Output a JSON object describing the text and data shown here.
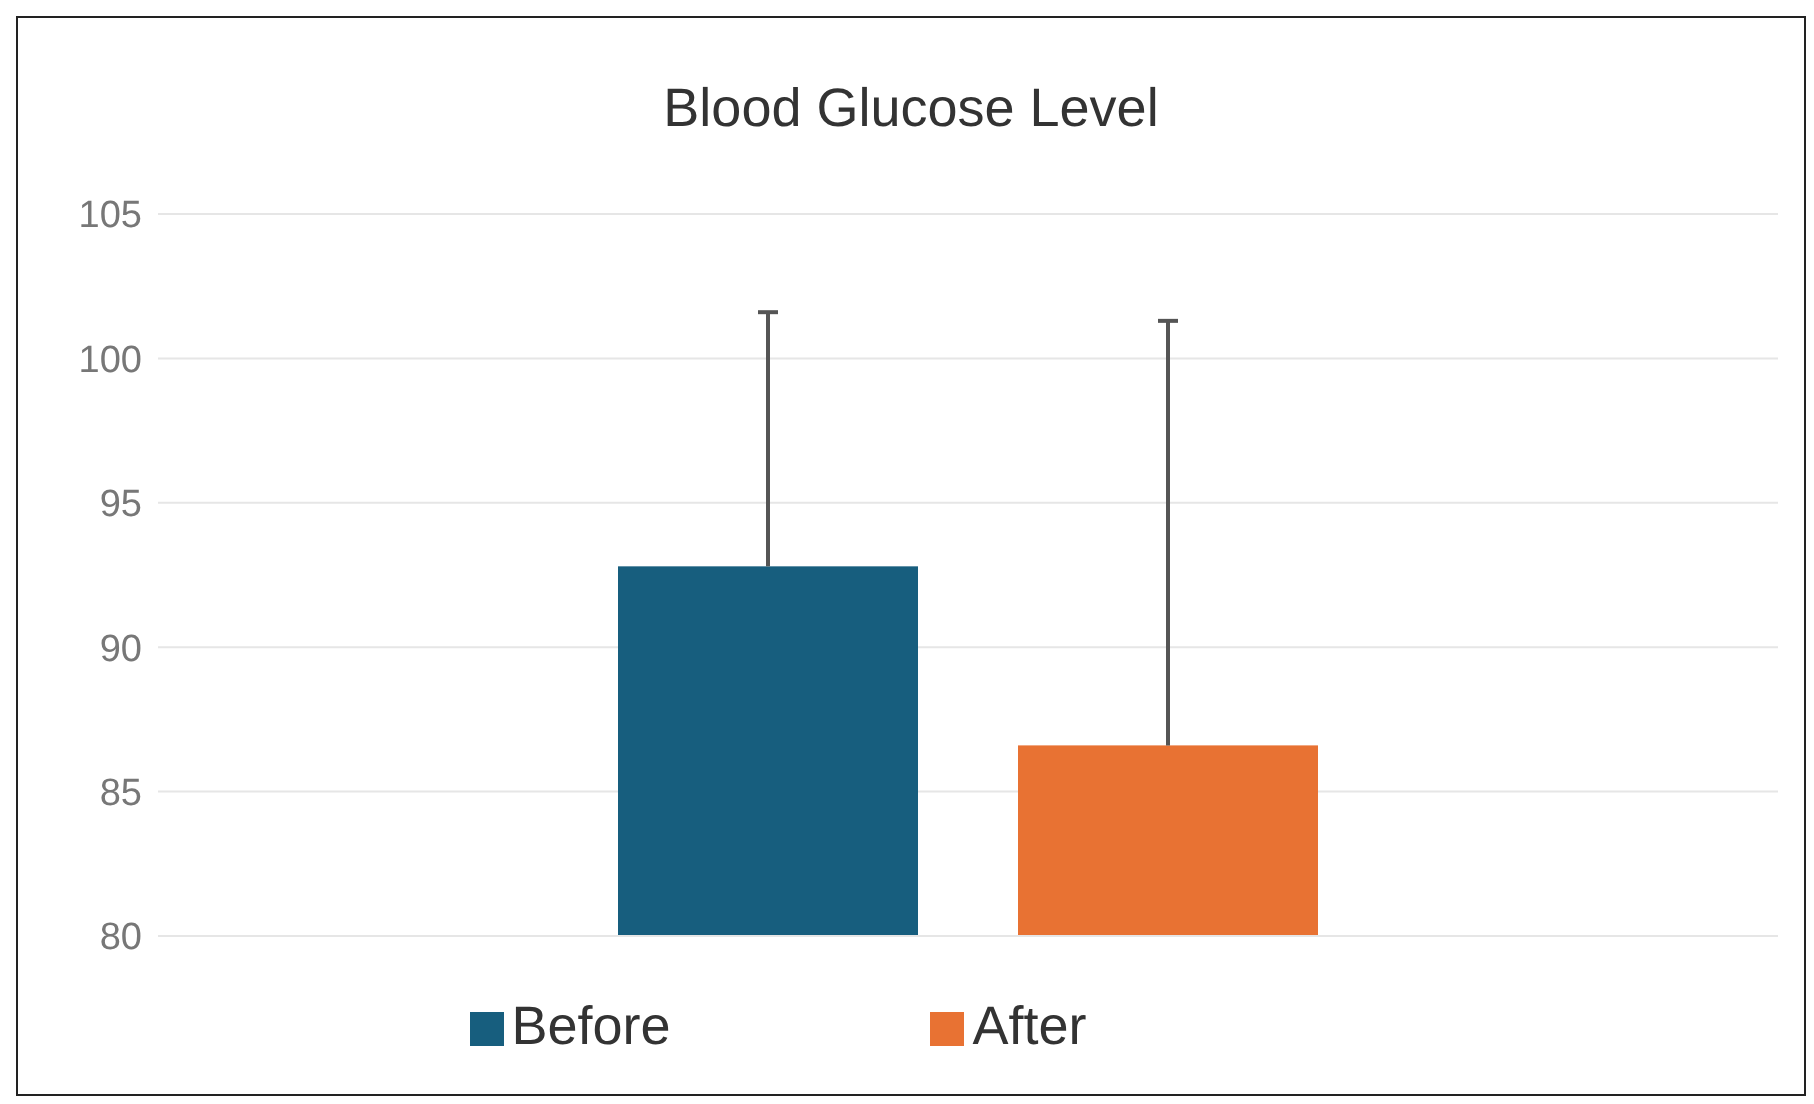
{
  "chart_data": {
    "type": "bar",
    "title": "Blood Glucose Level",
    "categories": [
      null
    ],
    "series": [
      {
        "name": "Before",
        "color": "#175e7e",
        "values": [
          92.8
        ],
        "errors": [
          [
            92.8,
            101.6
          ]
        ]
      },
      {
        "name": "After",
        "color": "#e87233",
        "values": [
          86.6
        ],
        "errors": [
          [
            86.6,
            101.3
          ]
        ]
      }
    ],
    "ylim": [
      80,
      105
    ],
    "yticks": [
      80,
      85,
      90,
      95,
      100,
      105
    ],
    "grid": "y",
    "legend": "bottom"
  }
}
